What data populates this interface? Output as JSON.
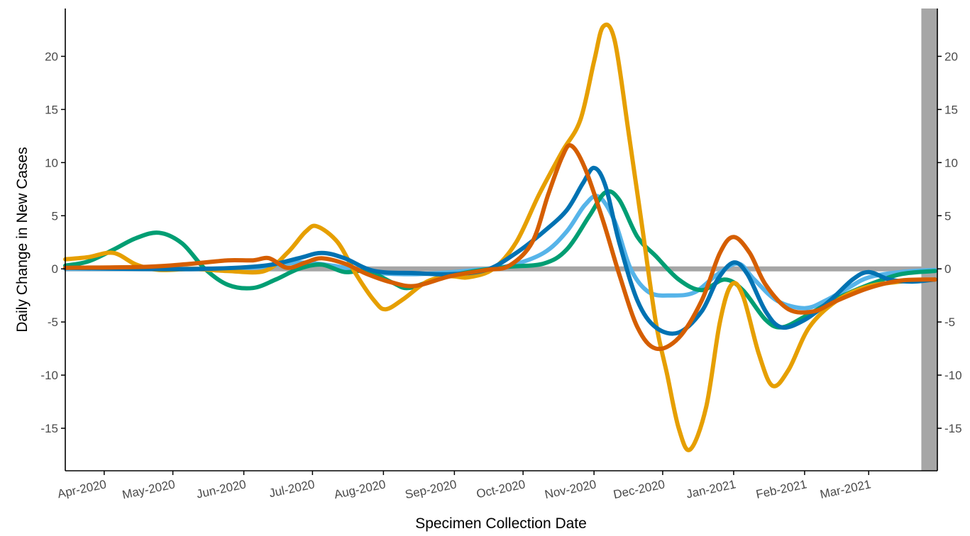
{
  "chart_data": {
    "type": "line",
    "title": "",
    "xlabel": "Specimen Collection Date",
    "ylabel": "Daily Change in New Cases",
    "x_range": [
      "2020-03-15",
      "2021-03-31"
    ],
    "ylim": [
      -19,
      24.5
    ],
    "grid": false,
    "legend": "none",
    "x_ticks": [
      {
        "date": "2020-04-01",
        "label": "Apr-2020"
      },
      {
        "date": "2020-05-01",
        "label": "May-2020"
      },
      {
        "date": "2020-06-01",
        "label": "Jun-2020"
      },
      {
        "date": "2020-07-01",
        "label": "Jul-2020"
      },
      {
        "date": "2020-08-01",
        "label": "Aug-2020"
      },
      {
        "date": "2020-09-01",
        "label": "Sep-2020"
      },
      {
        "date": "2020-10-01",
        "label": "Oct-2020"
      },
      {
        "date": "2020-11-01",
        "label": "Nov-2020"
      },
      {
        "date": "2020-12-01",
        "label": "Dec-2020"
      },
      {
        "date": "2021-01-01",
        "label": "Jan-2021"
      },
      {
        "date": "2021-02-01",
        "label": "Feb-2021"
      },
      {
        "date": "2021-03-01",
        "label": "Mar-2021"
      }
    ],
    "y_ticks": [
      20,
      15,
      10,
      5,
      0,
      -5,
      -10,
      -15
    ],
    "reference_line": {
      "y": 0,
      "color": "#a6a6a6"
    },
    "shaded_region": {
      "start": "2021-03-24",
      "end": "2021-03-31",
      "color": "#a6a6a6"
    },
    "series": [
      {
        "color": "#56b4e9",
        "points": [
          [
            "2020-03-15",
            0
          ],
          [
            "2020-04-15",
            0
          ],
          [
            "2020-05-15",
            0
          ],
          [
            "2020-06-10",
            0.2
          ],
          [
            "2020-06-25",
            0.6
          ],
          [
            "2020-07-10",
            0.3
          ],
          [
            "2020-07-25",
            -0.3
          ],
          [
            "2020-08-10",
            -0.5
          ],
          [
            "2020-08-25",
            -0.4
          ],
          [
            "2020-09-10",
            -0.1
          ],
          [
            "2020-09-25",
            0.3
          ],
          [
            "2020-10-10",
            1.5
          ],
          [
            "2020-10-20",
            3.5
          ],
          [
            "2020-10-28",
            6
          ],
          [
            "2020-11-03",
            6.8
          ],
          [
            "2020-11-10",
            4.5
          ],
          [
            "2020-11-17",
            0
          ],
          [
            "2020-11-25",
            -2.2
          ],
          [
            "2020-12-05",
            -2.5
          ],
          [
            "2020-12-15",
            -2.2
          ],
          [
            "2020-12-25",
            -0.5
          ],
          [
            "2021-01-03",
            0.5
          ],
          [
            "2021-01-10",
            -1
          ],
          [
            "2021-01-20",
            -3
          ],
          [
            "2021-02-01",
            -3.7
          ],
          [
            "2021-02-10",
            -3
          ],
          [
            "2021-02-20",
            -1.8
          ],
          [
            "2021-03-01",
            -0.8
          ],
          [
            "2021-03-15",
            -0.3
          ],
          [
            "2021-03-30",
            -0.1
          ]
        ]
      },
      {
        "color": "#009e73",
        "points": [
          [
            "2020-03-15",
            0.3
          ],
          [
            "2020-03-25",
            0.7
          ],
          [
            "2020-04-05",
            1.8
          ],
          [
            "2020-04-15",
            2.9
          ],
          [
            "2020-04-25",
            3.4
          ],
          [
            "2020-05-05",
            2.4
          ],
          [
            "2020-05-15",
            0
          ],
          [
            "2020-05-25",
            -1.5
          ],
          [
            "2020-06-05",
            -1.8
          ],
          [
            "2020-06-15",
            -1
          ],
          [
            "2020-06-25",
            0
          ],
          [
            "2020-07-05",
            0.4
          ],
          [
            "2020-07-15",
            -0.3
          ],
          [
            "2020-07-25",
            -0.2
          ],
          [
            "2020-08-05",
            -1.3
          ],
          [
            "2020-08-12",
            -1.8
          ],
          [
            "2020-08-25",
            -0.9
          ],
          [
            "2020-09-10",
            -0.2
          ],
          [
            "2020-09-25",
            0.2
          ],
          [
            "2020-10-10",
            0.5
          ],
          [
            "2020-10-20",
            1.8
          ],
          [
            "2020-10-30",
            5
          ],
          [
            "2020-11-06",
            7.2
          ],
          [
            "2020-11-12",
            6.5
          ],
          [
            "2020-11-20",
            3
          ],
          [
            "2020-11-28",
            1.2
          ],
          [
            "2020-12-08",
            -1
          ],
          [
            "2020-12-18",
            -2
          ],
          [
            "2020-12-28",
            -1
          ],
          [
            "2021-01-05",
            -2
          ],
          [
            "2021-01-15",
            -4.8
          ],
          [
            "2021-01-22",
            -5.5
          ],
          [
            "2021-02-01",
            -4.5
          ],
          [
            "2021-02-15",
            -2.8
          ],
          [
            "2021-03-01",
            -1.5
          ],
          [
            "2021-03-15",
            -0.5
          ],
          [
            "2021-03-30",
            -0.2
          ]
        ]
      },
      {
        "color": "#e69f00",
        "points": [
          [
            "2020-03-15",
            0.9
          ],
          [
            "2020-03-25",
            1.1
          ],
          [
            "2020-04-05",
            1.5
          ],
          [
            "2020-04-15",
            0.4
          ],
          [
            "2020-04-25",
            -0.1
          ],
          [
            "2020-05-10",
            0
          ],
          [
            "2020-05-25",
            -0.2
          ],
          [
            "2020-06-10",
            -0.2
          ],
          [
            "2020-06-20",
            1.5
          ],
          [
            "2020-06-28",
            3.5
          ],
          [
            "2020-07-03",
            4
          ],
          [
            "2020-07-12",
            2.5
          ],
          [
            "2020-07-20",
            -0.5
          ],
          [
            "2020-07-28",
            -3
          ],
          [
            "2020-08-02",
            -3.8
          ],
          [
            "2020-08-10",
            -2.8
          ],
          [
            "2020-08-20",
            -1.2
          ],
          [
            "2020-08-30",
            -0.7
          ],
          [
            "2020-09-07",
            -0.8
          ],
          [
            "2020-09-18",
            0
          ],
          [
            "2020-09-28",
            2.5
          ],
          [
            "2020-10-08",
            7
          ],
          [
            "2020-10-18",
            11
          ],
          [
            "2020-10-26",
            14
          ],
          [
            "2020-11-01",
            19.5
          ],
          [
            "2020-11-05",
            22.8
          ],
          [
            "2020-11-10",
            21.5
          ],
          [
            "2020-11-16",
            13
          ],
          [
            "2020-11-22",
            4
          ],
          [
            "2020-11-28",
            -5
          ],
          [
            "2020-12-03",
            -10
          ],
          [
            "2020-12-08",
            -15
          ],
          [
            "2020-12-13",
            -17
          ],
          [
            "2020-12-20",
            -13
          ],
          [
            "2020-12-26",
            -5
          ],
          [
            "2020-12-31",
            -1.5
          ],
          [
            "2021-01-05",
            -2.5
          ],
          [
            "2021-01-12",
            -8
          ],
          [
            "2021-01-18",
            -11
          ],
          [
            "2021-01-25",
            -9.5
          ],
          [
            "2021-02-03",
            -5.5
          ],
          [
            "2021-02-15",
            -3
          ],
          [
            "2021-02-28",
            -1.7
          ],
          [
            "2021-03-15",
            -1.2
          ],
          [
            "2021-03-30",
            -1
          ]
        ]
      },
      {
        "color": "#0072b2",
        "points": [
          [
            "2020-03-15",
            0.1
          ],
          [
            "2020-04-15",
            0
          ],
          [
            "2020-05-15",
            0
          ],
          [
            "2020-06-10",
            0.3
          ],
          [
            "2020-06-25",
            1
          ],
          [
            "2020-07-05",
            1.5
          ],
          [
            "2020-07-15",
            1
          ],
          [
            "2020-07-28",
            -0.2
          ],
          [
            "2020-08-15",
            -0.4
          ],
          [
            "2020-08-30",
            -0.5
          ],
          [
            "2020-09-15",
            -0.1
          ],
          [
            "2020-09-28",
            1.5
          ],
          [
            "2020-10-10",
            3.5
          ],
          [
            "2020-10-20",
            5.5
          ],
          [
            "2020-10-27",
            8
          ],
          [
            "2020-11-01",
            9.5
          ],
          [
            "2020-11-06",
            7.8
          ],
          [
            "2020-11-12",
            2.5
          ],
          [
            "2020-11-20",
            -3
          ],
          [
            "2020-11-28",
            -5.5
          ],
          [
            "2020-12-08",
            -6
          ],
          [
            "2020-12-18",
            -4
          ],
          [
            "2020-12-25",
            -1
          ],
          [
            "2021-01-01",
            0.6
          ],
          [
            "2021-01-07",
            -0.5
          ],
          [
            "2021-01-15",
            -4
          ],
          [
            "2021-01-22",
            -5.5
          ],
          [
            "2021-02-01",
            -4.8
          ],
          [
            "2021-02-12",
            -3
          ],
          [
            "2021-02-22",
            -1
          ],
          [
            "2021-03-01",
            -0.3
          ],
          [
            "2021-03-10",
            -1
          ],
          [
            "2021-03-20",
            -1.2
          ],
          [
            "2021-03-30",
            -1
          ]
        ]
      },
      {
        "color": "#d55e00",
        "points": [
          [
            "2020-03-15",
            0.1
          ],
          [
            "2020-04-20",
            0.2
          ],
          [
            "2020-05-10",
            0.5
          ],
          [
            "2020-05-25",
            0.8
          ],
          [
            "2020-06-05",
            0.8
          ],
          [
            "2020-06-12",
            1
          ],
          [
            "2020-06-20",
            0.1
          ],
          [
            "2020-06-28",
            0.6
          ],
          [
            "2020-07-05",
            1
          ],
          [
            "2020-07-15",
            0.5
          ],
          [
            "2020-07-25",
            -0.5
          ],
          [
            "2020-08-05",
            -1.3
          ],
          [
            "2020-08-15",
            -1.6
          ],
          [
            "2020-08-30",
            -0.7
          ],
          [
            "2020-09-15",
            -0.1
          ],
          [
            "2020-09-25",
            0.3
          ],
          [
            "2020-10-05",
            2.5
          ],
          [
            "2020-10-12",
            7
          ],
          [
            "2020-10-18",
            10.5
          ],
          [
            "2020-10-22",
            11.6
          ],
          [
            "2020-10-28",
            9.5
          ],
          [
            "2020-11-05",
            4.5
          ],
          [
            "2020-11-12",
            -0.5
          ],
          [
            "2020-11-20",
            -5.5
          ],
          [
            "2020-11-28",
            -7.5
          ],
          [
            "2020-12-08",
            -6.5
          ],
          [
            "2020-12-18",
            -3
          ],
          [
            "2020-12-26",
            1.5
          ],
          [
            "2021-01-01",
            3
          ],
          [
            "2021-01-08",
            1.5
          ],
          [
            "2021-01-15",
            -1.5
          ],
          [
            "2021-01-25",
            -3.8
          ],
          [
            "2021-02-05",
            -4
          ],
          [
            "2021-02-15",
            -3
          ],
          [
            "2021-03-01",
            -1.8
          ],
          [
            "2021-03-15",
            -1.1
          ],
          [
            "2021-03-30",
            -1
          ]
        ]
      }
    ]
  }
}
